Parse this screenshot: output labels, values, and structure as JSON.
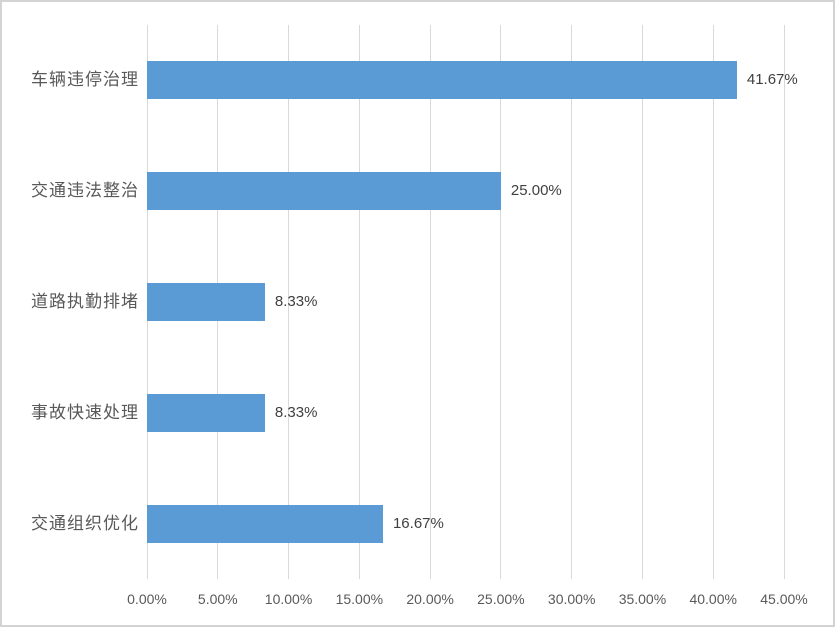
{
  "chart_data": {
    "type": "bar",
    "orientation": "horizontal",
    "title": "",
    "xlabel": "",
    "ylabel": "",
    "legend": "none",
    "grid": "vertical-only",
    "categories": [
      "车辆违停治理",
      "交通违法整治",
      "道路执勤排堵",
      "事故快速处理",
      "交通组织优化"
    ],
    "values": [
      41.67,
      25.0,
      8.33,
      8.33,
      16.67
    ],
    "value_labels": [
      "41.67%",
      "25.00%",
      "8.33%",
      "8.33%",
      "16.67%"
    ],
    "x_tick_labels": [
      "0.00%",
      "5.00%",
      "10.00%",
      "15.00%",
      "20.00%",
      "25.00%",
      "30.00%",
      "35.00%",
      "40.00%",
      "45.00%"
    ],
    "xlim": [
      0,
      45
    ]
  },
  "colors": {
    "bar_fill": "#5B9BD5",
    "gridline": "#D9D9D9",
    "axis_text": "#595959",
    "value_text": "#404040",
    "frame_border": "#D3D3D3",
    "background": "#FFFFFF"
  }
}
